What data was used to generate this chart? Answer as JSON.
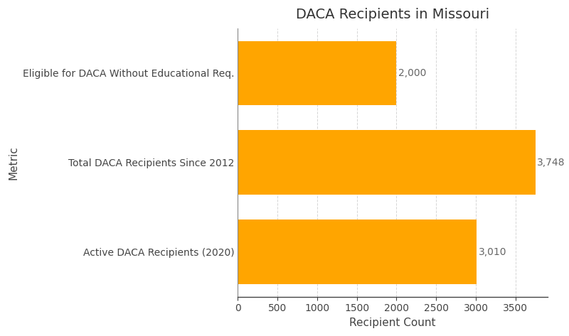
{
  "title": "DACA Recipients in Missouri",
  "categories": [
    "Eligible for DACA Without Educational Req.",
    "Total DACA Recipients Since 2012",
    "Active DACA Recipients (2020)"
  ],
  "values": [
    2000,
    3748,
    3010
  ],
  "bar_color": "#FFA500",
  "xlabel": "Recipient Count",
  "ylabel": "Metric",
  "xlim": [
    0,
    3900
  ],
  "xticks": [
    0,
    500,
    1000,
    1500,
    2000,
    2500,
    3000,
    3500
  ],
  "value_labels": [
    "2,000",
    "3,748",
    "3,010"
  ],
  "background_color": "#ffffff",
  "grid_color": "#cccccc",
  "title_fontsize": 14,
  "label_fontsize": 11,
  "tick_fontsize": 10,
  "value_label_color": "#666666",
  "axis_label_color": "#444444",
  "category_label_color": "#444444",
  "bar_height": 0.72
}
